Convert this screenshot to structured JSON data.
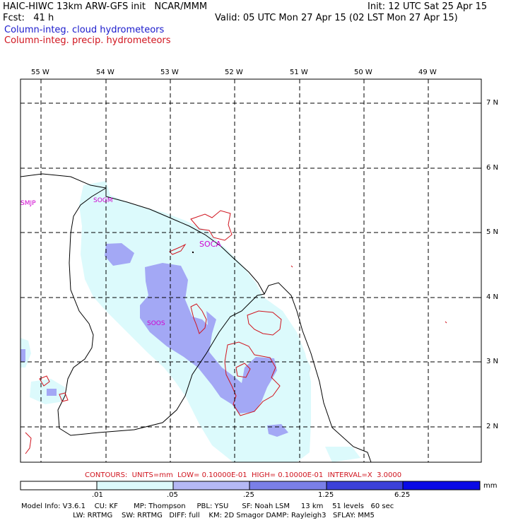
{
  "header": {
    "title_left": "HAIC-HIWC 13km ARW-GFS init   NCAR/MMM",
    "init": "Init: 12 UTC Sat 25 Apr 15",
    "fcst": "Fcst:   41 h",
    "valid": "Valid: 05 UTC Mon 27 Apr 15 (02 LST Mon 27 Apr 15)",
    "legend_cloud": "Column-integ. cloud hydrometeors",
    "legend_precip": "Column-integ. precip. hydrometeors"
  },
  "map": {
    "lon_labels": [
      "55 W",
      "54 W",
      "53 W",
      "52 W",
      "51 W",
      "50 W",
      "49 W"
    ],
    "lat_labels": [
      "7 N",
      "6 N",
      "5 N",
      "4 N",
      "3 N",
      "2 N"
    ],
    "stations": [
      {
        "id": "SMJP"
      },
      {
        "id": "SOGM"
      },
      {
        "id": "SOCA"
      },
      {
        "id": "SOOS"
      }
    ],
    "colors": {
      "cloud_light": "#dcfafc",
      "cloud_mid": "#a3a8f5",
      "contour": "#d0141e",
      "station": "#d000d0"
    }
  },
  "contours_text": "CONTOURS:  UNITS=mm  LOW= 0.10000E-01  HIGH= 0.10000E-01  INTERVAL=X  3.0000",
  "colorbar": {
    "ticks": [
      ".01",
      ".05",
      ".25",
      "1.25",
      "6.25"
    ],
    "unit": "mm",
    "colors": [
      "#ffffff",
      "#dcfafc",
      "#b4b8f5",
      "#7a7fe8",
      "#3c40d8",
      "#0a0ae6"
    ]
  },
  "model_info": {
    "line1": "Model Info: V3.6.1    CU: KF       MP: Thompson     PBL: YSU      SF: Noah LSM     13 km    51 levels   60 sec",
    "line2": "                       LW: RRTMG    SW: RRTMG   DIFF: full    KM: 2D Smagor DAMP: Rayleigh3   SFLAY: MM5"
  }
}
